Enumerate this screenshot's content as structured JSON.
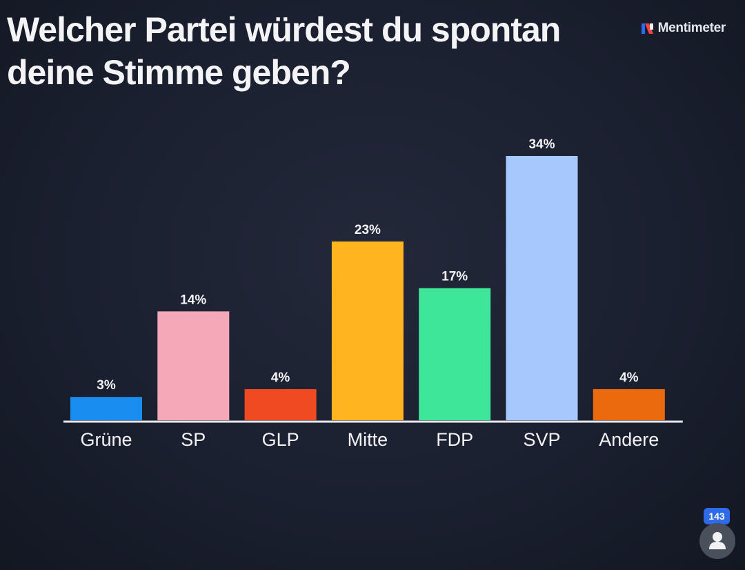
{
  "title": "Welcher Partei würdest du spontan deine Stimme geben?",
  "brand": {
    "name": "Mentimeter",
    "logo_icon": "mentimeter-logo-icon"
  },
  "participants": {
    "count": "143",
    "icon": "person-icon"
  },
  "colors": {
    "background": "#1b2030",
    "text": "#f4f4f6",
    "axis": "#e8e8ec",
    "count_badge": "#2f6be8"
  },
  "chart_data": {
    "type": "bar",
    "categories": [
      "Grüne",
      "SP",
      "GLP",
      "Mitte",
      "FDP",
      "SVP",
      "Andere"
    ],
    "values": [
      3,
      14,
      4,
      23,
      17,
      34,
      4
    ],
    "value_labels": [
      "3%",
      "14%",
      "4%",
      "23%",
      "17%",
      "34%",
      "4%"
    ],
    "colors": [
      "#1a8ef0",
      "#f4a8b8",
      "#f04a22",
      "#ffb420",
      "#3ee69a",
      "#a7c8fc",
      "#ec6a0e"
    ],
    "unit": "%",
    "ylim": [
      0,
      34
    ],
    "grid": false,
    "legend": false
  }
}
